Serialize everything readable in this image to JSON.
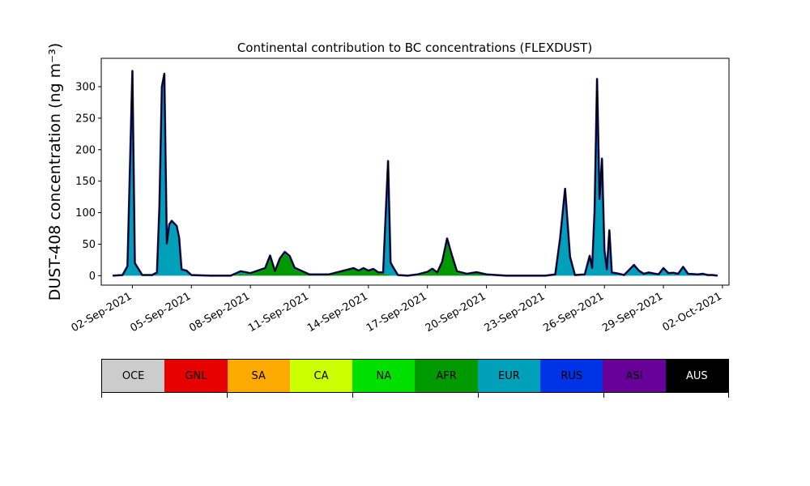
{
  "chart_data": {
    "type": "area",
    "title": "Continental contribution to BC concentrations (FLEXDUST)",
    "ylabel": "DUST-408 concentration (ng m⁻³)",
    "ylim": [
      -15,
      345
    ],
    "yticks": [
      0,
      50,
      100,
      150,
      200,
      250,
      300
    ],
    "xlim": [
      "2021-08-31T10:00",
      "2021-10-02T08:00"
    ],
    "xtick_labels": [
      "02-Sep-2021",
      "05-Sep-2021",
      "08-Sep-2021",
      "11-Sep-2021",
      "14-Sep-2021",
      "17-Sep-2021",
      "20-Sep-2021",
      "23-Sep-2021",
      "26-Sep-2021",
      "29-Sep-2021",
      "02-Oct-2021"
    ],
    "xtick_dates": [
      "2021-09-02",
      "2021-09-05",
      "2021-09-08",
      "2021-09-11",
      "2021-09-14",
      "2021-09-17",
      "2021-09-20",
      "2021-09-23",
      "2021-09-26",
      "2021-09-29",
      "2021-10-02"
    ],
    "stacked": true,
    "series": [
      {
        "name": "AFR",
        "color": "#009900",
        "values": [
          [
            "2021-09-01T00:00",
            0
          ],
          [
            "2021-09-02T00:00",
            0
          ],
          [
            "2021-09-03T00:00",
            0
          ],
          [
            "2021-09-04T00:00",
            0
          ],
          [
            "2021-09-05T00:00",
            0
          ],
          [
            "2021-09-06T00:00",
            0
          ],
          [
            "2021-09-07T00:00",
            0
          ],
          [
            "2021-09-07T12:00",
            3
          ],
          [
            "2021-09-08T00:00",
            2
          ],
          [
            "2021-09-08T18:00",
            10
          ],
          [
            "2021-09-09T00:00",
            30
          ],
          [
            "2021-09-09T06:00",
            5
          ],
          [
            "2021-09-09T12:00",
            25
          ],
          [
            "2021-09-09T18:00",
            35
          ],
          [
            "2021-09-10T00:00",
            28
          ],
          [
            "2021-09-10T06:00",
            10
          ],
          [
            "2021-09-10T18:00",
            4
          ],
          [
            "2021-09-11T00:00",
            1
          ],
          [
            "2021-09-12T00:00",
            2
          ],
          [
            "2021-09-12T12:00",
            6
          ],
          [
            "2021-09-13T00:00",
            10
          ],
          [
            "2021-09-13T06:00",
            12
          ],
          [
            "2021-09-13T12:00",
            8
          ],
          [
            "2021-09-13T18:00",
            12
          ],
          [
            "2021-09-14T00:00",
            8
          ],
          [
            "2021-09-14T06:00",
            10
          ],
          [
            "2021-09-14T12:00",
            4
          ],
          [
            "2021-09-15T00:00",
            2
          ],
          [
            "2021-09-15T06:00",
            0
          ],
          [
            "2021-09-16T00:00",
            0
          ],
          [
            "2021-09-16T12:00",
            1
          ],
          [
            "2021-09-17T00:00",
            4
          ],
          [
            "2021-09-17T06:00",
            9
          ],
          [
            "2021-09-17T12:00",
            3
          ],
          [
            "2021-09-17T18:00",
            20
          ],
          [
            "2021-09-18T00:00",
            57
          ],
          [
            "2021-09-18T06:00",
            30
          ],
          [
            "2021-09-18T12:00",
            5
          ],
          [
            "2021-09-19T00:00",
            1
          ],
          [
            "2021-09-19T12:00",
            4
          ],
          [
            "2021-09-20T00:00",
            1
          ],
          [
            "2021-09-21T00:00",
            0
          ],
          [
            "2021-09-22T00:00",
            0
          ],
          [
            "2021-09-23T00:00",
            0
          ],
          [
            "2021-09-24T00:00",
            0
          ],
          [
            "2021-09-25T00:00",
            0
          ],
          [
            "2021-09-26T00:00",
            0
          ],
          [
            "2021-09-27T00:00",
            0
          ],
          [
            "2021-09-28T00:00",
            0
          ],
          [
            "2021-09-29T00:00",
            0
          ],
          [
            "2021-09-30T00:00",
            0
          ],
          [
            "2021-10-01T00:00",
            0
          ],
          [
            "2021-10-01T18:00",
            0
          ]
        ]
      },
      {
        "name": "EUR",
        "color": "#00a0b8",
        "values": [
          [
            "2021-09-01T00:00",
            0
          ],
          [
            "2021-09-01T12:00",
            1
          ],
          [
            "2021-09-01T18:00",
            15
          ],
          [
            "2021-09-02T00:00",
            325
          ],
          [
            "2021-09-02T03:00",
            20
          ],
          [
            "2021-09-02T12:00",
            1
          ],
          [
            "2021-09-03T00:00",
            1
          ],
          [
            "2021-09-03T06:00",
            5
          ],
          [
            "2021-09-03T09:00",
            110
          ],
          [
            "2021-09-03T12:00",
            300
          ],
          [
            "2021-09-03T15:00",
            320
          ],
          [
            "2021-09-03T18:00",
            50
          ],
          [
            "2021-09-03T21:00",
            80
          ],
          [
            "2021-09-04T00:00",
            85
          ],
          [
            "2021-09-04T06:00",
            78
          ],
          [
            "2021-09-04T09:00",
            60
          ],
          [
            "2021-09-04T12:00",
            10
          ],
          [
            "2021-09-04T18:00",
            8
          ],
          [
            "2021-09-05T00:00",
            1
          ],
          [
            "2021-09-06T00:00",
            0
          ],
          [
            "2021-09-07T00:00",
            0
          ],
          [
            "2021-09-07T12:00",
            4
          ],
          [
            "2021-09-08T00:00",
            2
          ],
          [
            "2021-09-09T00:00",
            2
          ],
          [
            "2021-09-10T00:00",
            3
          ],
          [
            "2021-09-11T00:00",
            1
          ],
          [
            "2021-09-12T00:00",
            0
          ],
          [
            "2021-09-13T00:00",
            0
          ],
          [
            "2021-09-14T00:00",
            0
          ],
          [
            "2021-09-14T18:00",
            2
          ],
          [
            "2021-09-15T00:00",
            180
          ],
          [
            "2021-09-15T03:00",
            20
          ],
          [
            "2021-09-15T12:00",
            1
          ],
          [
            "2021-09-16T00:00",
            0
          ],
          [
            "2021-09-17T00:00",
            2
          ],
          [
            "2021-09-18T00:00",
            2
          ],
          [
            "2021-09-19T00:00",
            2
          ],
          [
            "2021-09-20T00:00",
            1
          ],
          [
            "2021-09-21T00:00",
            0
          ],
          [
            "2021-09-22T00:00",
            0
          ],
          [
            "2021-09-23T00:00",
            0
          ],
          [
            "2021-09-23T12:00",
            2
          ],
          [
            "2021-09-23T18:00",
            60
          ],
          [
            "2021-09-24T00:00",
            138
          ],
          [
            "2021-09-24T06:00",
            30
          ],
          [
            "2021-09-24T12:00",
            1
          ],
          [
            "2021-09-25T00:00",
            2
          ],
          [
            "2021-09-25T06:00",
            30
          ],
          [
            "2021-09-25T09:00",
            10
          ],
          [
            "2021-09-25T12:00",
            100
          ],
          [
            "2021-09-25T15:00",
            310
          ],
          [
            "2021-09-25T18:00",
            120
          ],
          [
            "2021-09-25T21:00",
            185
          ],
          [
            "2021-09-26T00:00",
            40
          ],
          [
            "2021-09-26T03:00",
            10
          ],
          [
            "2021-09-26T06:00",
            72
          ],
          [
            "2021-09-26T09:00",
            5
          ],
          [
            "2021-09-26T18:00",
            3
          ],
          [
            "2021-09-27T00:00",
            1
          ],
          [
            "2021-09-27T12:00",
            17
          ],
          [
            "2021-09-27T18:00",
            8
          ],
          [
            "2021-09-28T00:00",
            3
          ],
          [
            "2021-09-28T06:00",
            5
          ],
          [
            "2021-09-28T18:00",
            2
          ],
          [
            "2021-09-29T00:00",
            12
          ],
          [
            "2021-09-29T06:00",
            3
          ],
          [
            "2021-09-29T18:00",
            2
          ],
          [
            "2021-09-30T00:00",
            14
          ],
          [
            "2021-09-30T06:00",
            3
          ],
          [
            "2021-09-30T18:00",
            2
          ],
          [
            "2021-10-01T00:00",
            3
          ],
          [
            "2021-10-01T06:00",
            1
          ],
          [
            "2021-10-01T12:00",
            1
          ],
          [
            "2021-10-01T18:00",
            0
          ]
        ]
      },
      {
        "name": "CA",
        "color": "#ccff00",
        "values": [
          [
            "2021-09-01T00:00",
            0
          ],
          [
            "2021-09-03T12:00",
            0
          ],
          [
            "2021-09-04T00:00",
            2
          ],
          [
            "2021-09-04T12:00",
            0
          ],
          [
            "2021-09-25T00:00",
            0
          ],
          [
            "2021-09-25T12:00",
            3
          ],
          [
            "2021-09-26T00:00",
            0
          ],
          [
            "2021-09-29T00:00",
            0
          ],
          [
            "2021-09-29T12:00",
            2
          ],
          [
            "2021-09-30T00:00",
            0
          ],
          [
            "2021-10-01T18:00",
            0
          ]
        ]
      }
    ],
    "total_line": {
      "color": "#000000"
    },
    "legend": {
      "placement": "bottom",
      "entries": [
        {
          "name": "OCE",
          "color": "#cccccc",
          "text_color": "#000000"
        },
        {
          "name": "GNL",
          "color": "#e60000",
          "text_color": "#000000"
        },
        {
          "name": "SA",
          "color": "#ffaa00",
          "text_color": "#000000"
        },
        {
          "name": "CA",
          "color": "#ccff00",
          "text_color": "#000000"
        },
        {
          "name": "NA",
          "color": "#00e000",
          "text_color": "#000000"
        },
        {
          "name": "AFR",
          "color": "#009900",
          "text_color": "#000000"
        },
        {
          "name": "EUR",
          "color": "#00a0b8",
          "text_color": "#000000"
        },
        {
          "name": "RUS",
          "color": "#0033e6",
          "text_color": "#000000"
        },
        {
          "name": "ASI",
          "color": "#660099",
          "text_color": "#000000"
        },
        {
          "name": "AUS",
          "color": "#000000",
          "text_color": "#ffffff"
        }
      ]
    },
    "grid": false
  }
}
